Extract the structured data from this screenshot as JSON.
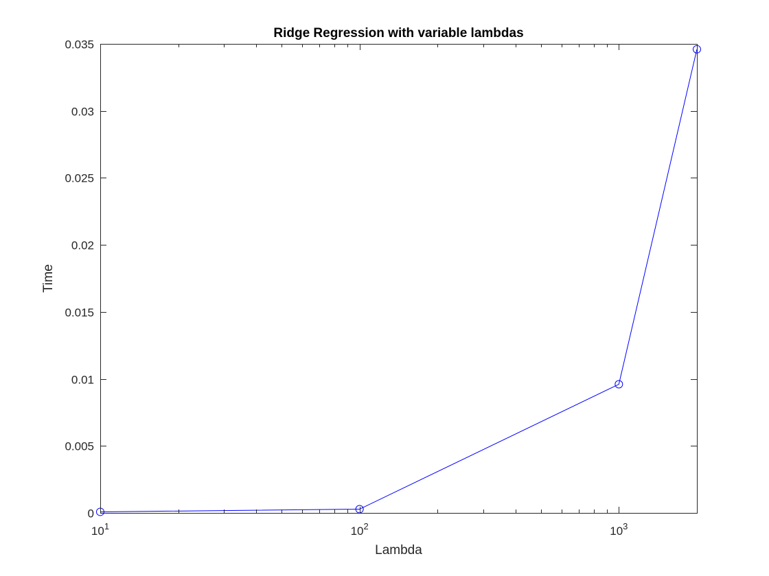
{
  "chart_data": {
    "type": "line",
    "title": "Ridge Regression with variable lambdas",
    "xlabel": "Lambda",
    "ylabel": "Time",
    "xscale": "log",
    "xlim": [
      10,
      2000
    ],
    "ylim": [
      0,
      0.035
    ],
    "grid": false,
    "box": true,
    "x_ticks": [
      {
        "value": 10,
        "base": "10",
        "exp": "1"
      },
      {
        "value": 100,
        "base": "10",
        "exp": "2"
      },
      {
        "value": 1000,
        "base": "10",
        "exp": "3"
      }
    ],
    "y_ticks": [
      {
        "value": 0,
        "label": "0"
      },
      {
        "value": 0.005,
        "label": "0.005"
      },
      {
        "value": 0.01,
        "label": "0.01"
      },
      {
        "value": 0.015,
        "label": "0.015"
      },
      {
        "value": 0.02,
        "label": "0.02"
      },
      {
        "value": 0.025,
        "label": "0.025"
      },
      {
        "value": 0.03,
        "label": "0.03"
      },
      {
        "value": 0.035,
        "label": "0.035"
      }
    ],
    "series": [
      {
        "color": "#0000ff",
        "marker": "circle",
        "x": [
          10,
          100,
          1000,
          2000
        ],
        "y": [
          8e-05,
          0.00028,
          0.0096,
          0.0346
        ]
      }
    ]
  }
}
